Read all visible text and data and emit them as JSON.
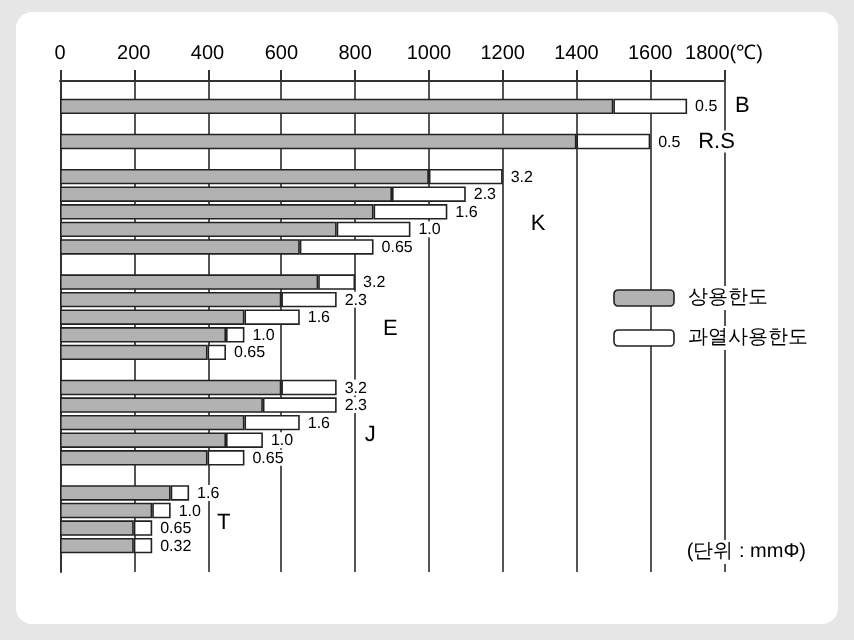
{
  "chart_data": {
    "type": "bar",
    "orientation": "horizontal",
    "stacked": true,
    "categories": [
      null,
      "0.5",
      null,
      "0.5",
      null,
      "3.2",
      "2.3",
      "1.6",
      "1.0",
      "0.65",
      null,
      "3.2",
      "2.3",
      "1.6",
      "1.0",
      "0.65",
      null,
      "3.2",
      "2.3",
      "1.6",
      "1.0",
      "0.65",
      null,
      "1.6",
      "1.0",
      "0.65",
      "0.32",
      null
    ],
    "series": [
      {
        "name": "상용한도",
        "color": "#b2b2b2",
        "values": [
          null,
          1500,
          null,
          1400,
          null,
          1000,
          900,
          850,
          750,
          650,
          null,
          700,
          600,
          500,
          450,
          400,
          null,
          600,
          550,
          500,
          450,
          400,
          null,
          300,
          250,
          200,
          200,
          null
        ]
      },
      {
        "name": "과열사용한도",
        "color": "#ffffff",
        "values": [
          null,
          200,
          null,
          200,
          null,
          200,
          200,
          200,
          200,
          200,
          null,
          100,
          150,
          150,
          50,
          50,
          null,
          150,
          200,
          150,
          100,
          100,
          null,
          50,
          50,
          50,
          50,
          null
        ]
      }
    ],
    "xlim": [
      0,
      1800
    ],
    "xticks": [
      0,
      200,
      400,
      600,
      800,
      1000,
      1200,
      1400,
      1600,
      {
        "value": 1800,
        "label": "1800(℃)"
      }
    ],
    "grid": "x",
    "legend": "right",
    "annotations": [
      "B",
      "R.S",
      "K",
      "E",
      "J",
      "T",
      "(단위 : mmΦ)"
    ]
  }
}
